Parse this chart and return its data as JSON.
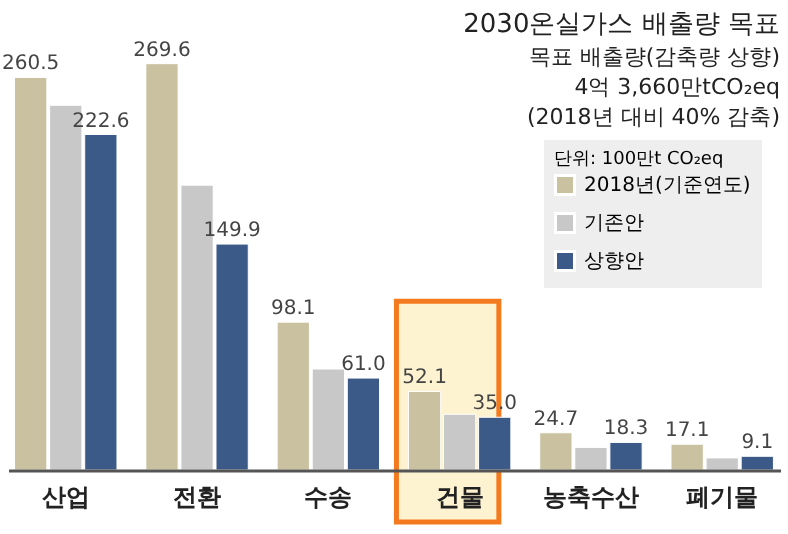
{
  "chart_data": {
    "type": "bar",
    "title": "2030온실가스 배출량 목표",
    "annotations": [
      "목표 배출량(감축량 상향)",
      "4억 3,660만tCO₂eq",
      "(2018년 대비 40% 감축)"
    ],
    "legend_title": "단위: 100만t CO₂eq",
    "legend": "top right",
    "categories": [
      "산업",
      "전환",
      "수송",
      "건물",
      "농축수산",
      "폐기물"
    ],
    "series": [
      {
        "name": "2018년(기준연도)",
        "color": "#c9c19f",
        "values": [
          260.5,
          269.6,
          98.1,
          52.1,
          24.7,
          17.1
        ],
        "value_labels": [
          "260.5",
          "269.6",
          "98.1",
          "52.1",
          "24.7",
          "17.1"
        ]
      },
      {
        "name": "기존안",
        "color": "#c8c8c8",
        "values": [
          242,
          189,
          67,
          37,
          15,
          8
        ],
        "value_labels": [
          null,
          null,
          null,
          null,
          null,
          null
        ]
      },
      {
        "name": "상향안",
        "color": "#3c5a87",
        "values": [
          222.6,
          149.9,
          61.0,
          35.0,
          18.3,
          9.1
        ],
        "value_labels": [
          "222.6",
          "149.9",
          "61.0",
          "35.0",
          "18.3",
          "9.1"
        ]
      }
    ],
    "bands": [
      {
        "axis": "x",
        "from": "건물",
        "to": "건물",
        "color": "#f47a20"
      }
    ]
  }
}
